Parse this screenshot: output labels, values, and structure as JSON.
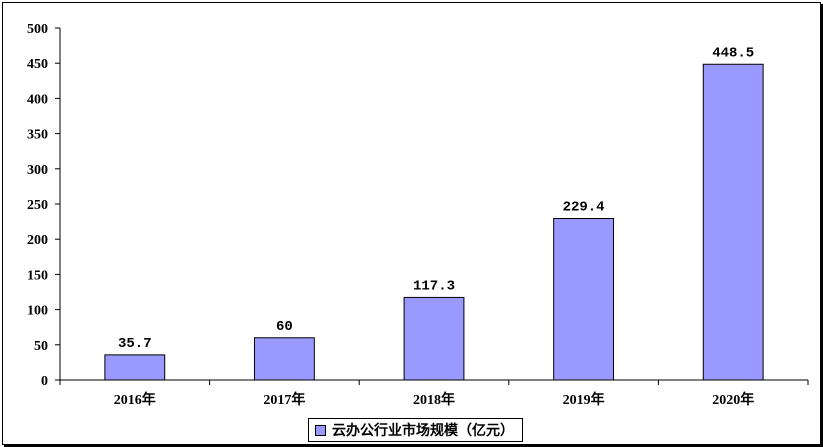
{
  "chart_data": {
    "type": "bar",
    "categories": [
      "2016年",
      "2017年",
      "2018年",
      "2019年",
      "2020年"
    ],
    "series": [
      {
        "name": "云办公行业市场规模（亿元）",
        "values": [
          35.7,
          60,
          117.3,
          229.4,
          448.5
        ]
      }
    ],
    "data_labels": [
      "35.7",
      "60",
      "117.3",
      "229.4",
      "448.5"
    ],
    "yticks": [
      "0",
      "50",
      "100",
      "150",
      "200",
      "250",
      "300",
      "350",
      "400",
      "450",
      "500"
    ],
    "ylim": [
      0,
      500
    ],
    "grid": false,
    "legend_position": "bottom",
    "colors": {
      "bar": "#9999ff",
      "bar_border": "#000000"
    }
  }
}
